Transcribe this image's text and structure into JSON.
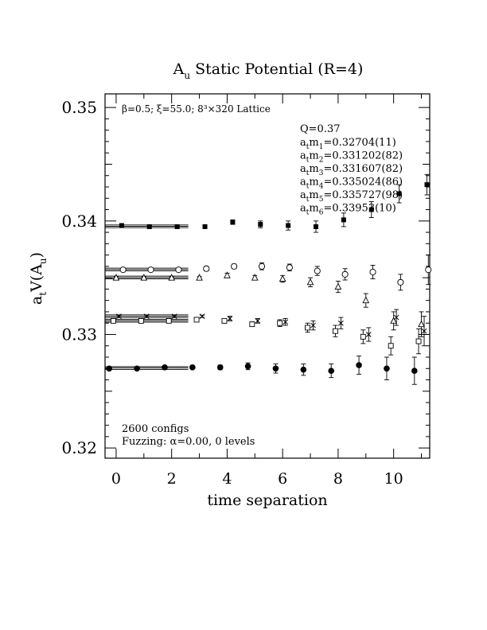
{
  "chart_data": {
    "type": "scatter",
    "title": "A",
    "title_sub": "u",
    "title_rest": " Static Potential (R=4)",
    "xlabel": "time separation",
    "ylabel_main": "a",
    "ylabel_sub": "t",
    "ylabel_rest": "V(A",
    "ylabel_sub2": "u",
    "ylabel_end": ")",
    "xlim": [
      -0.4,
      11.3
    ],
    "ylim": [
      0.3191,
      0.3512
    ],
    "xticks": [
      "0",
      "2",
      "4",
      "6",
      "8",
      "10"
    ],
    "xtick_values": [
      0,
      2,
      4,
      6,
      8,
      10
    ],
    "yticks": [
      "0.32",
      "0.33",
      "0.34",
      "0.35"
    ],
    "ytick_values": [
      0.32,
      0.33,
      0.34,
      0.35
    ],
    "lattice_note": "β=0.5; ξ=55.0; 8³×320 Lattice",
    "q_label": "Q=0.37",
    "fit_labels": [
      {
        "prefix": "a",
        "sub1": "t",
        "mid": "m",
        "sub2": "1",
        "value": "=0.32704(11)"
      },
      {
        "prefix": "a",
        "sub1": "t",
        "mid": "m",
        "sub2": "2",
        "value": "=0.331202(82)"
      },
      {
        "prefix": "a",
        "sub1": "t",
        "mid": "m",
        "sub2": "3",
        "value": "=0.331607(82)"
      },
      {
        "prefix": "a",
        "sub1": "t",
        "mid": "m",
        "sub2": "4",
        "value": "=0.335024(86)"
      },
      {
        "prefix": "a",
        "sub1": "t",
        "mid": "m",
        "sub2": "5",
        "value": "=0.335727(98)"
      },
      {
        "prefix": "a",
        "sub1": "t",
        "mid": "m",
        "sub2": "6",
        "value": "=0.33953(10)"
      }
    ],
    "configs_note": "2600 configs",
    "fuzzing_note": "Fuzzing: α=0.00, 0 levels",
    "series": [
      {
        "marker": "filled-square",
        "fit": 0.33953,
        "fit_range": [
          -0.4,
          2.6
        ],
        "x": [
          0.2,
          1.2,
          2.2,
          3.2,
          4.2,
          5.2,
          6.2,
          7.2,
          8.2,
          9.2,
          10.2,
          11.2
        ],
        "y": [
          0.3396,
          0.3395,
          0.3395,
          0.3395,
          0.3399,
          0.3397,
          0.3396,
          0.3395,
          0.3401,
          0.341,
          0.3424,
          0.3432
        ],
        "err": [
          0.0001,
          0.0001,
          0.0001,
          0.0001,
          0.0002,
          0.0003,
          0.0004,
          0.0005,
          0.0006,
          0.0007,
          0.0008,
          0.0009
        ]
      },
      {
        "marker": "open-circle",
        "fit": 0.335727,
        "fit_range": [
          -0.4,
          2.6
        ],
        "x": [
          0.25,
          1.25,
          2.25,
          3.25,
          4.25,
          5.25,
          6.25,
          7.25,
          8.25,
          9.25,
          10.25,
          11.25
        ],
        "y": [
          0.3357,
          0.3357,
          0.3357,
          0.3358,
          0.336,
          0.336,
          0.3359,
          0.3356,
          0.3353,
          0.3355,
          0.3346,
          0.3357
        ],
        "err": [
          0.0001,
          0.0001,
          0.0001,
          0.0002,
          0.0002,
          0.0003,
          0.0003,
          0.0004,
          0.0005,
          0.0006,
          0.0007,
          0.0013
        ]
      },
      {
        "marker": "open-triangle",
        "fit": 0.335024,
        "fit_range": [
          -0.4,
          2.6
        ],
        "x": [
          0.0,
          1.0,
          2.0,
          3.0,
          4.0,
          5.0,
          6.0,
          7.0,
          8.0,
          9.0,
          10.0,
          11.0
        ],
        "y": [
          0.335,
          0.335,
          0.335,
          0.335,
          0.3352,
          0.335,
          0.3349,
          0.3346,
          0.3342,
          0.333,
          0.3312,
          0.3309
        ],
        "err": [
          0.0001,
          0.0001,
          0.0001,
          0.0001,
          0.0002,
          0.0002,
          0.0003,
          0.0004,
          0.0005,
          0.0006,
          0.0008,
          0.0011
        ]
      },
      {
        "marker": "cross",
        "fit": 0.331607,
        "fit_range": [
          -0.4,
          2.6
        ],
        "x": [
          0.1,
          1.1,
          2.1,
          3.1,
          4.1,
          5.1,
          6.1,
          7.1,
          8.1,
          9.1,
          10.1,
          11.1
        ],
        "y": [
          0.3316,
          0.3316,
          0.3316,
          0.3316,
          0.3314,
          0.3312,
          0.3311,
          0.3308,
          0.331,
          0.33,
          0.3315,
          0.3303
        ],
        "err": [
          0.0001,
          0.0001,
          0.0001,
          0.0001,
          0.0002,
          0.0002,
          0.0003,
          0.0004,
          0.0005,
          0.0006,
          0.0007,
          0.0013
        ]
      },
      {
        "marker": "open-square",
        "fit": 0.331202,
        "fit_range": [
          -0.4,
          2.6
        ],
        "x": [
          -0.1,
          0.9,
          1.9,
          2.9,
          3.9,
          4.9,
          5.9,
          6.9,
          7.9,
          8.9,
          9.9,
          10.9
        ],
        "y": [
          0.3312,
          0.3312,
          0.3312,
          0.3313,
          0.3312,
          0.3309,
          0.331,
          0.3306,
          0.3303,
          0.3298,
          0.329,
          0.3294
        ],
        "err": [
          0.0001,
          0.0001,
          0.0001,
          0.0001,
          0.0002,
          0.0002,
          0.0003,
          0.0004,
          0.0005,
          0.0006,
          0.0008,
          0.0011
        ]
      },
      {
        "marker": "filled-circle",
        "fit": 0.32704,
        "fit_range": [
          -0.4,
          2.6
        ],
        "x": [
          -0.25,
          0.75,
          1.75,
          2.75,
          3.75,
          4.75,
          5.75,
          6.75,
          7.75,
          8.75,
          9.75,
          10.75
        ],
        "y": [
          0.327,
          0.327,
          0.3271,
          0.3271,
          0.3271,
          0.3272,
          0.327,
          0.3269,
          0.3268,
          0.3273,
          0.327,
          0.3268
        ],
        "err": [
          0.0001,
          0.0001,
          0.0001,
          0.0001,
          0.0002,
          0.0003,
          0.0004,
          0.0005,
          0.0006,
          0.0008,
          0.001,
          0.0012
        ]
      }
    ]
  }
}
